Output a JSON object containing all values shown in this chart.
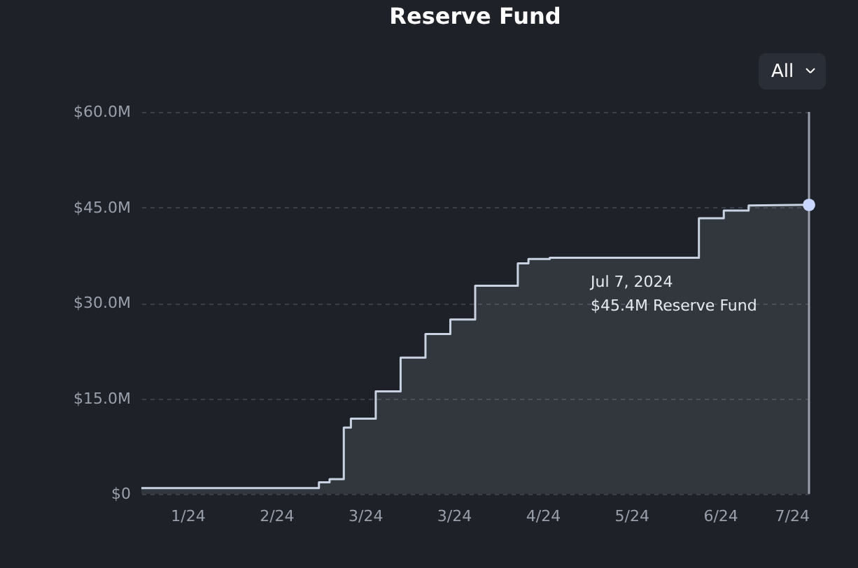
{
  "chart_data": {
    "type": "area",
    "title": "Reserve Fund",
    "x": [
      "2024-01-01",
      "2024-02-20",
      "2024-02-20",
      "2024-02-23",
      "2024-02-23",
      "2024-02-27",
      "2024-02-27",
      "2024-02-29",
      "2024-02-29",
      "2024-03-07",
      "2024-03-07",
      "2024-03-14",
      "2024-03-14",
      "2024-03-21",
      "2024-03-21",
      "2024-03-28",
      "2024-03-28",
      "2024-04-04",
      "2024-04-04",
      "2024-04-16",
      "2024-04-16",
      "2024-04-19",
      "2024-04-19",
      "2024-04-25",
      "2024-04-25",
      "2024-06-06",
      "2024-06-06",
      "2024-06-13",
      "2024-06-13",
      "2024-06-20",
      "2024-06-20",
      "2024-07-07"
    ],
    "series": [
      {
        "color": "#c9d2e3",
        "values": [
          0.9,
          0.9,
          1.8,
          1.8,
          2.3,
          2.3,
          10.4,
          10.4,
          11.8,
          11.8,
          16.1,
          16.1,
          21.4,
          21.4,
          25.1,
          25.1,
          27.4,
          27.4,
          32.7,
          32.7,
          36.2,
          36.2,
          36.9,
          36.9,
          37.1,
          37.1,
          43.3,
          43.3,
          44.5,
          44.5,
          45.3,
          45.4
        ]
      },
      {
        "type": "scatter",
        "color": "#c9d6ff",
        "marker": "circle",
        "x": [
          "2024-07-07"
        ],
        "values": [
          45.4
        ]
      }
    ],
    "xlim": [
      "2024-01-01",
      "2024-07-07"
    ],
    "xticks": [
      {
        "value": "2024-01-14",
        "label": "1/24"
      },
      {
        "value": "2024-02-08",
        "label": "2/24"
      },
      {
        "value": "2024-03-04",
        "label": "3/24"
      },
      {
        "value": "2024-03-29",
        "label": "3/24"
      },
      {
        "value": "2024-04-23",
        "label": "4/24"
      },
      {
        "value": "2024-05-18",
        "label": "5/24"
      },
      {
        "value": "2024-06-12",
        "label": "6/24"
      },
      {
        "value": "2024-07-07",
        "label": "7/24"
      }
    ],
    "ylim": [
      0,
      60
    ],
    "yticks": [
      {
        "value": 0,
        "label": "$0"
      },
      {
        "value": 15,
        "label": "$15.0M"
      },
      {
        "value": 30,
        "label": "$30.0M"
      },
      {
        "value": 45,
        "label": "$45.0M"
      },
      {
        "value": 60,
        "label": "$60.0M"
      }
    ],
    "ref_lines": [
      {
        "axis": "x",
        "value": "2024-07-07",
        "color": "#9aa0aa"
      }
    ],
    "annotations": [
      "Jul 7, 2024\n$45.4M    Reserve Fund",
      "All"
    ],
    "grid": "y",
    "marker": "none",
    "line_style": "solid"
  }
}
